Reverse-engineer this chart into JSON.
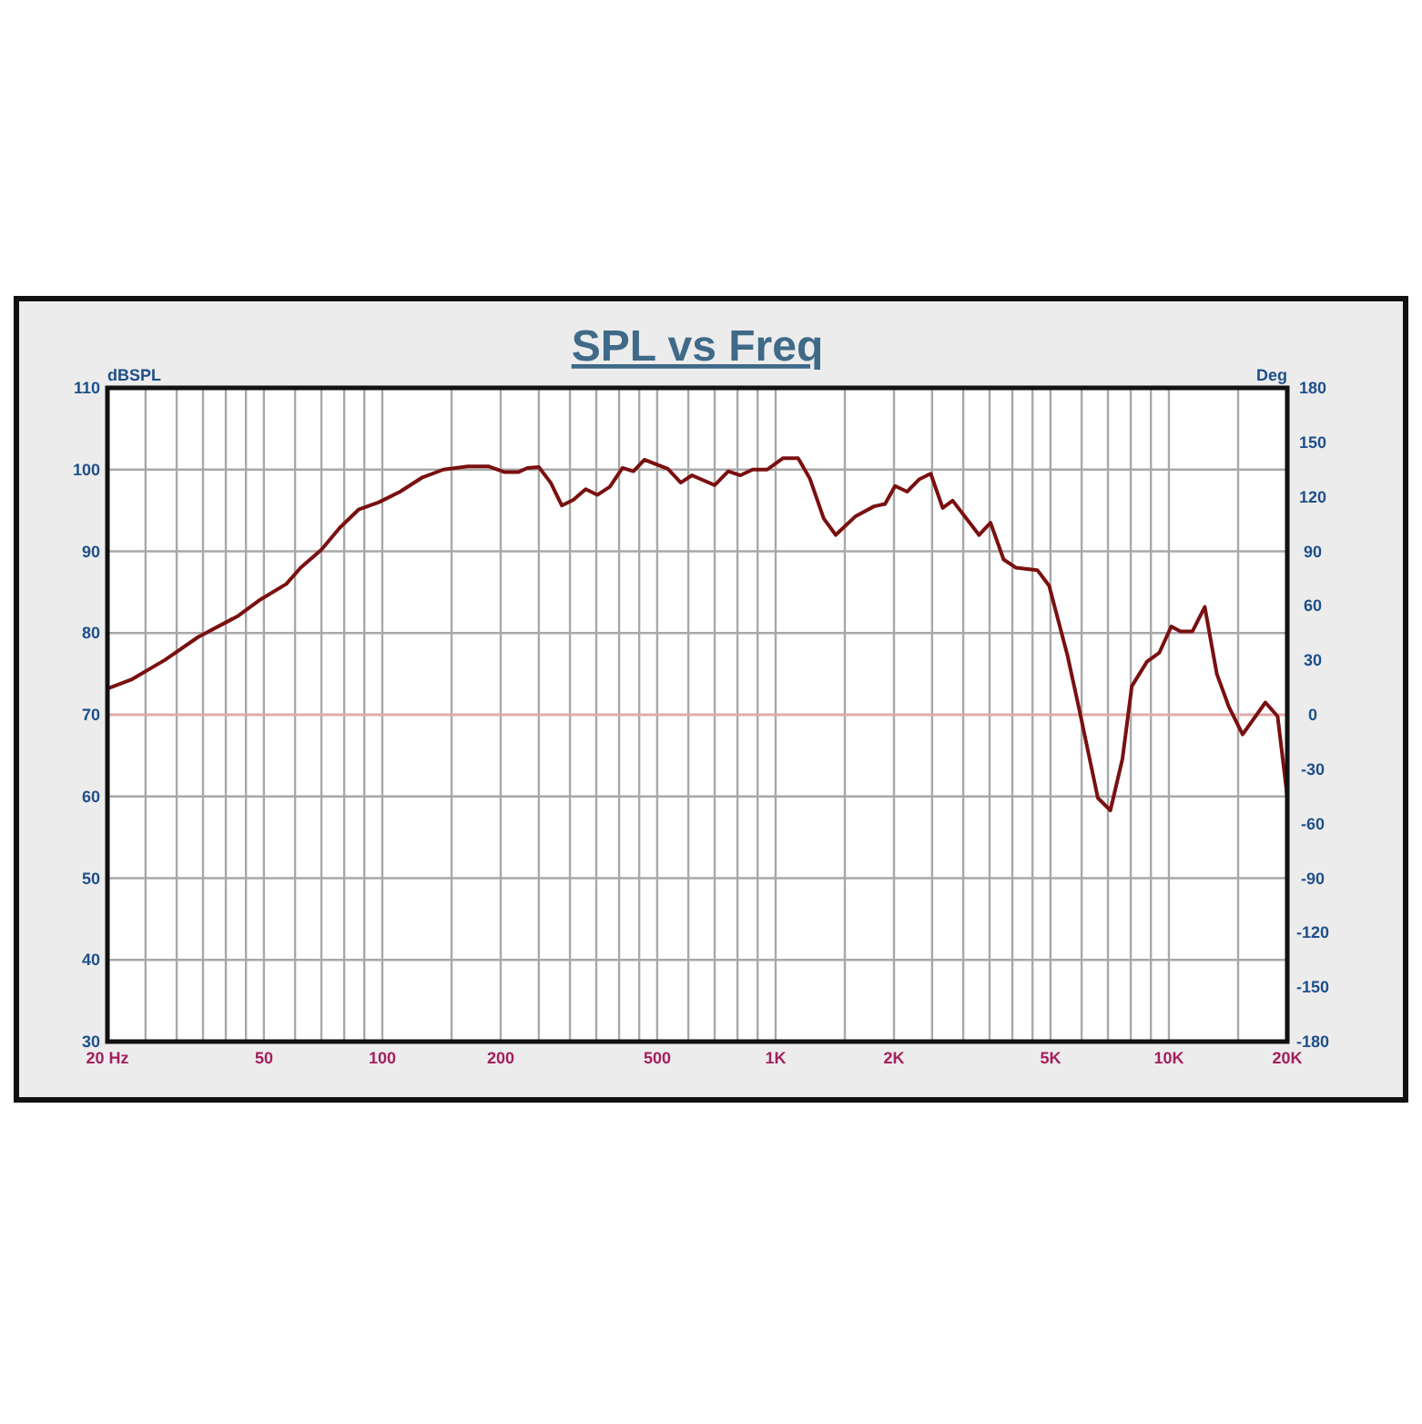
{
  "chart_data": {
    "type": "line",
    "title": "SPL vs Freq",
    "ylabel": "dBSPL",
    "y2label": "Deg",
    "log": "x",
    "grid": true,
    "marker": "none",
    "line_style": "solid",
    "xlim": [
      20,
      20000
    ],
    "ylim": [
      30,
      110
    ],
    "y2lim": [
      -180,
      180
    ],
    "xticks": [
      {
        "value": 20,
        "label": "20 Hz"
      },
      {
        "value": 25,
        "label": null
      },
      {
        "value": 30,
        "label": null
      },
      {
        "value": 35,
        "label": null
      },
      {
        "value": 40,
        "label": null
      },
      {
        "value": 45,
        "label": null
      },
      50,
      {
        "value": 60,
        "label": null
      },
      {
        "value": 70,
        "label": null
      },
      {
        "value": 80,
        "label": null
      },
      {
        "value": 90,
        "label": null
      },
      100,
      {
        "value": 150,
        "label": null
      },
      200,
      {
        "value": 250,
        "label": null
      },
      {
        "value": 300,
        "label": null
      },
      {
        "value": 350,
        "label": null
      },
      {
        "value": 400,
        "label": null
      },
      {
        "value": 450,
        "label": null
      },
      500,
      {
        "value": 600,
        "label": null
      },
      {
        "value": 700,
        "label": null
      },
      {
        "value": 800,
        "label": null
      },
      {
        "value": 900,
        "label": null
      },
      {
        "value": 1000,
        "label": "1K"
      },
      {
        "value": 1500,
        "label": null
      },
      {
        "value": 2000,
        "label": "2K"
      },
      {
        "value": 2500,
        "label": null
      },
      {
        "value": 3000,
        "label": null
      },
      {
        "value": 3500,
        "label": null
      },
      {
        "value": 4000,
        "label": null
      },
      {
        "value": 4500,
        "label": null
      },
      {
        "value": 5000,
        "label": "5K"
      },
      {
        "value": 6000,
        "label": null
      },
      {
        "value": 7000,
        "label": null
      },
      {
        "value": 8000,
        "label": null
      },
      {
        "value": 9000,
        "label": null
      },
      {
        "value": 10000,
        "label": "10K"
      },
      {
        "value": 15000,
        "label": null
      },
      {
        "value": 20000,
        "label": "20K"
      }
    ],
    "yticks": [
      30,
      40,
      50,
      60,
      70,
      80,
      90,
      100,
      110
    ],
    "y2ticks": [
      -180,
      -150,
      -120,
      -90,
      -60,
      -30,
      0,
      30,
      60,
      90,
      120,
      150,
      180
    ],
    "ref_lines": [
      {
        "axis": "y",
        "value": 70,
        "color": "#e8a8a8"
      }
    ],
    "series": [
      {
        "color": "#7a1010",
        "x": [
          20,
          23,
          28,
          34,
          43,
          49,
          57,
          62,
          70,
          78,
          87,
          98,
          111,
          126,
          143,
          165,
          186,
          204,
          222,
          234,
          250,
          268,
          286,
          306,
          329,
          352,
          379,
          408,
          435,
          464,
          532,
          574,
          613,
          700,
          758,
          814,
          874,
          952,
          1045,
          1141,
          1222,
          1326,
          1422,
          1598,
          1780,
          1898,
          2013,
          2160,
          2316,
          2480,
          2660,
          2820,
          3290,
          3520,
          3800,
          4080,
          4630,
          4960,
          5520,
          5920,
          6600,
          7100,
          7620,
          8050,
          8800,
          9460,
          10140,
          10700,
          11480,
          12340,
          13240,
          14200,
          15400,
          17600,
          18900,
          20000
        ],
        "values": [
          73.2,
          74.3,
          76.7,
          79.5,
          82.1,
          84.1,
          86.0,
          88.0,
          90.2,
          92.9,
          95.1,
          96.0,
          97.3,
          99.0,
          100.0,
          100.4,
          100.4,
          99.7,
          99.7,
          100.2,
          100.3,
          98.4,
          95.6,
          96.3,
          97.6,
          96.9,
          97.9,
          100.2,
          99.8,
          101.2,
          100.1,
          98.4,
          99.3,
          98.1,
          99.8,
          99.3,
          100.0,
          100.0,
          101.4,
          101.4,
          98.9,
          94.0,
          92.0,
          94.3,
          95.5,
          95.8,
          98.0,
          97.3,
          98.8,
          99.5,
          95.3,
          96.2,
          92.0,
          93.5,
          89.0,
          88.0,
          87.7,
          85.8,
          77.3,
          70.6,
          59.8,
          58.3,
          64.6,
          73.5,
          76.5,
          77.6,
          80.8,
          80.2,
          80.2,
          83.2,
          75.0,
          71.0,
          67.6,
          71.5,
          69.8,
          60.0
        ]
      }
    ]
  }
}
